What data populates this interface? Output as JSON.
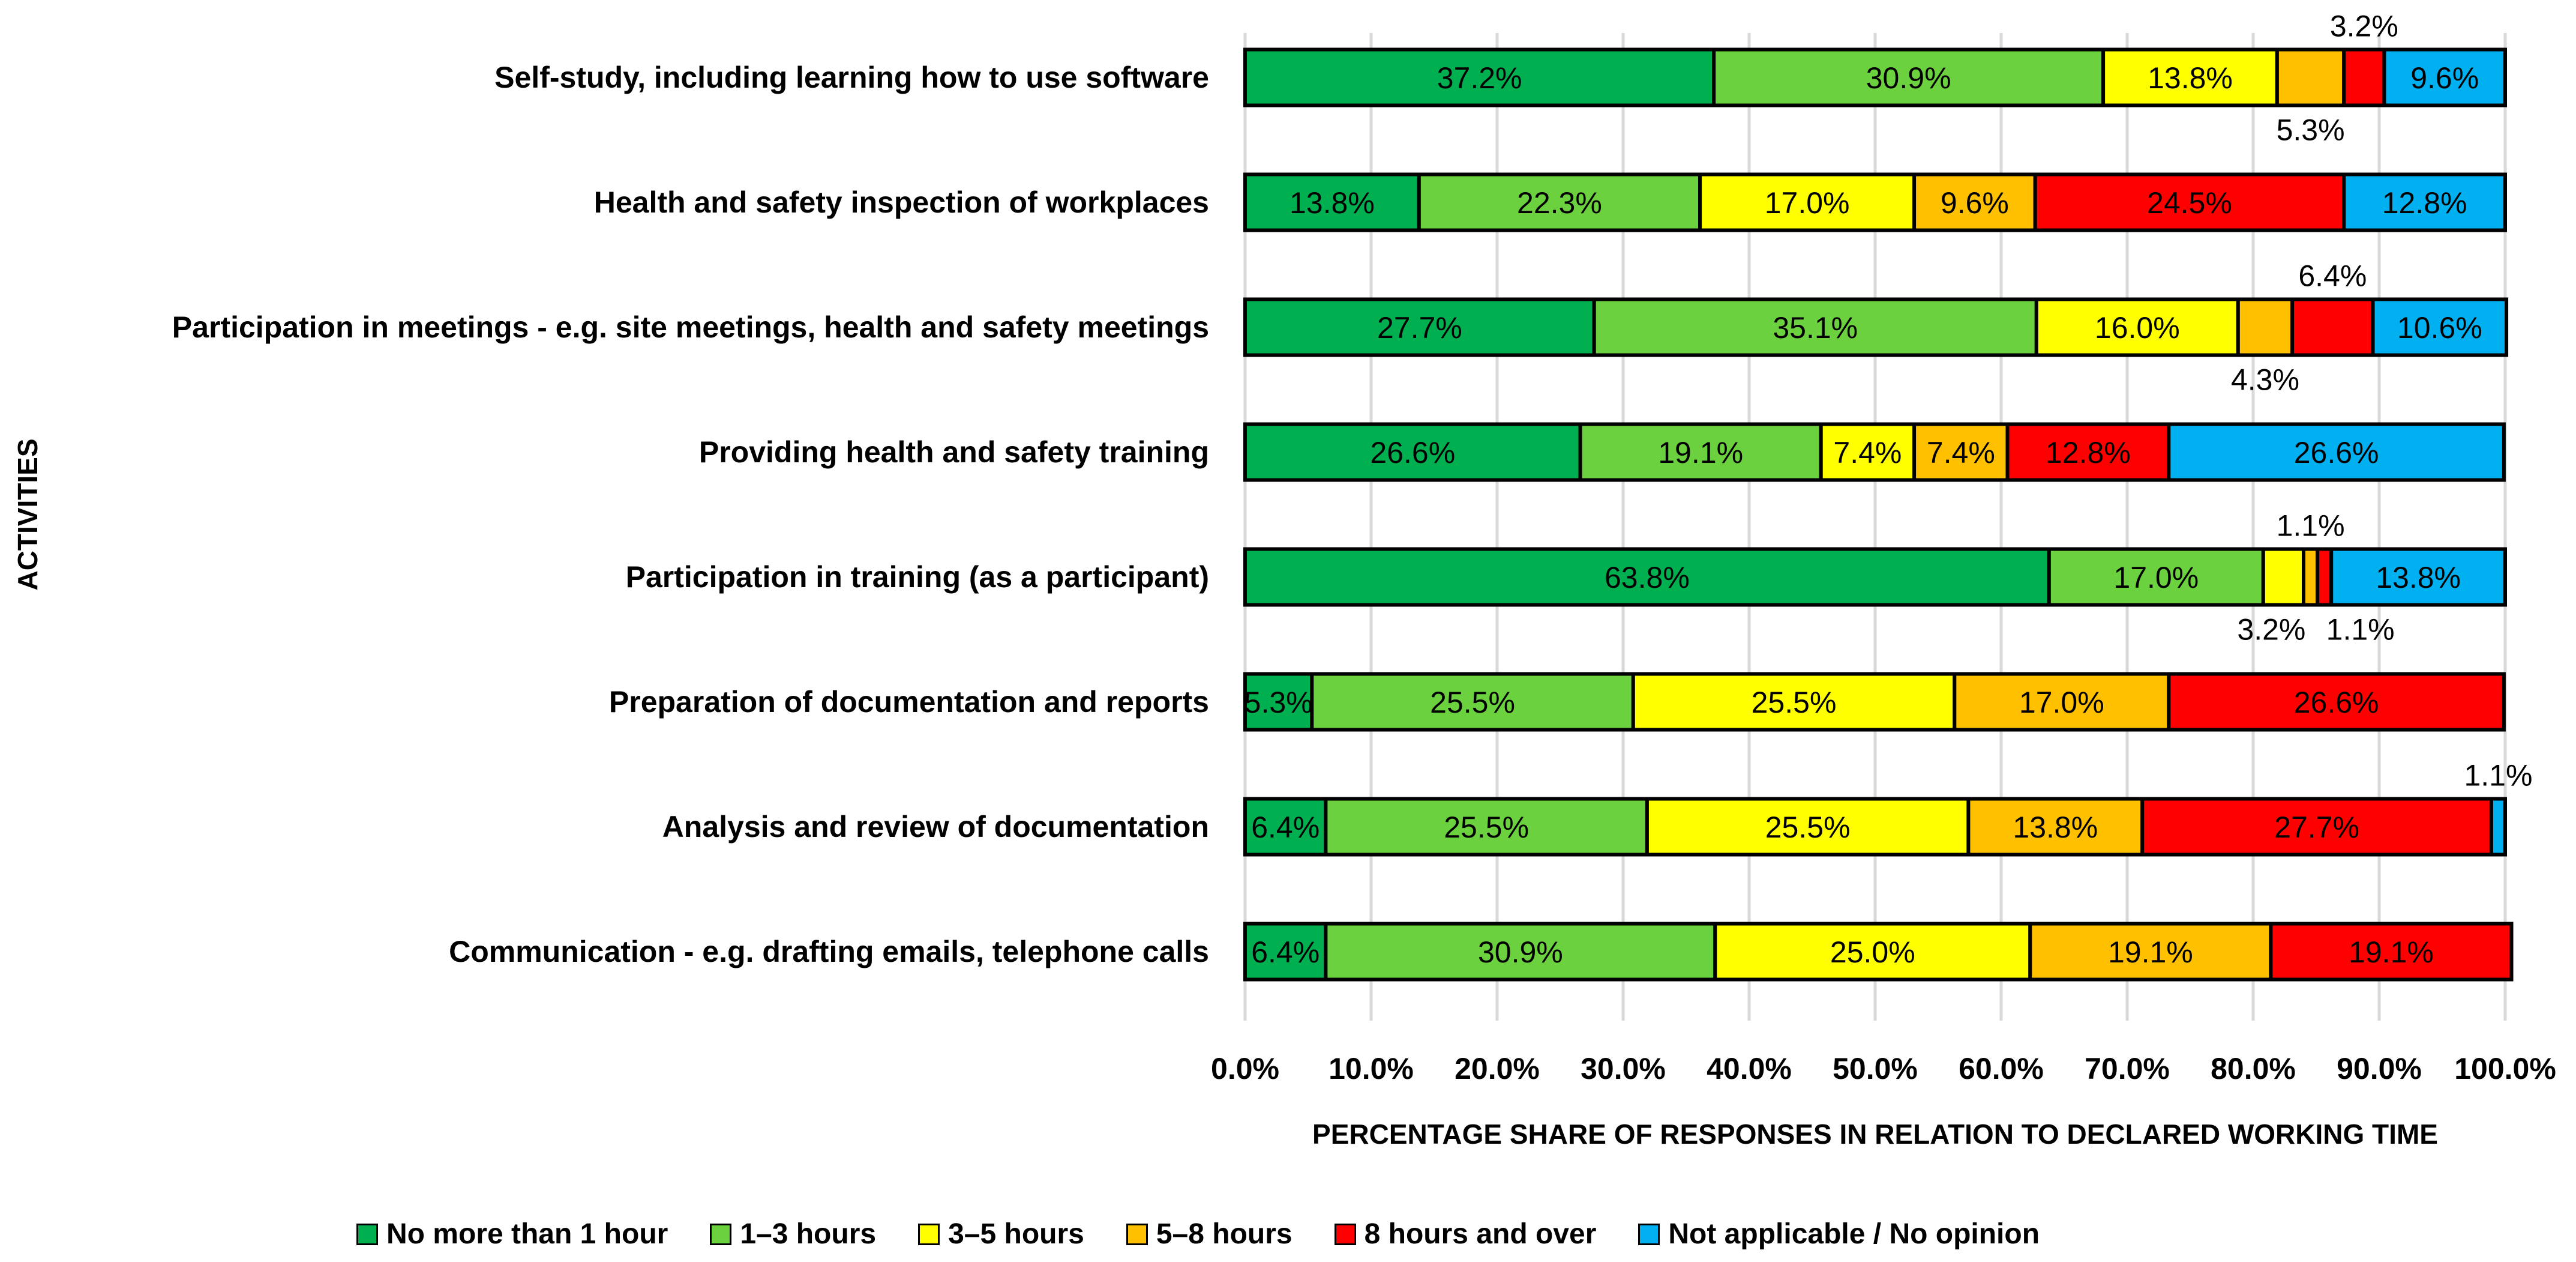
{
  "chart_data": {
    "type": "bar",
    "orientation": "horizontal",
    "stacked": "percent",
    "ylabel": "ACTIVITIES",
    "xlabel": "PERCENTAGE SHARE OF RESPONSES IN RELATION TO DECLARED WORKING TIME",
    "xlim": [
      0,
      100
    ],
    "x_ticks": [
      "0.0%",
      "10.0%",
      "20.0%",
      "30.0%",
      "40.0%",
      "50.0%",
      "60.0%",
      "70.0%",
      "80.0%",
      "90.0%",
      "100.0%"
    ],
    "grid": "vertical",
    "legend_position": "bottom",
    "categories": [
      "Self-study, including learning how to use software",
      "Health and safety inspection of workplaces",
      "Participation in meetings - e.g. site meetings, health and safety meetings",
      "Providing health and safety training",
      "Participation in training (as a participant)",
      "Preparation of documentation and reports",
      "Analysis and review of documentation",
      "Communication - e.g. drafting emails, telephone calls"
    ],
    "series": [
      {
        "name": "No more than 1 hour",
        "color": "#00B050",
        "values": [
          37.2,
          13.8,
          27.7,
          26.6,
          63.8,
          5.3,
          6.4,
          6.4
        ]
      },
      {
        "name": "1–3 hours",
        "color": "#6CD13F",
        "values": [
          30.9,
          22.3,
          35.1,
          19.1,
          17.0,
          25.5,
          25.5,
          30.9
        ]
      },
      {
        "name": "3–5 hours",
        "color": "#FFFF00",
        "values": [
          13.8,
          17.0,
          16.0,
          7.4,
          3.2,
          25.5,
          25.5,
          25.0
        ]
      },
      {
        "name": "5–8 hours",
        "color": "#FFC000",
        "values": [
          5.3,
          9.6,
          4.3,
          7.4,
          1.1,
          17.0,
          13.8,
          19.1
        ]
      },
      {
        "name": "8 hours and over",
        "color": "#FF0000",
        "values": [
          3.2,
          24.5,
          6.4,
          12.8,
          1.1,
          26.6,
          27.7,
          19.1
        ]
      },
      {
        "name": "Not applicable / No opinion",
        "color": "#00B0F0",
        "values": [
          9.6,
          12.8,
          10.6,
          26.6,
          13.8,
          null,
          1.1,
          null
        ]
      }
    ]
  }
}
